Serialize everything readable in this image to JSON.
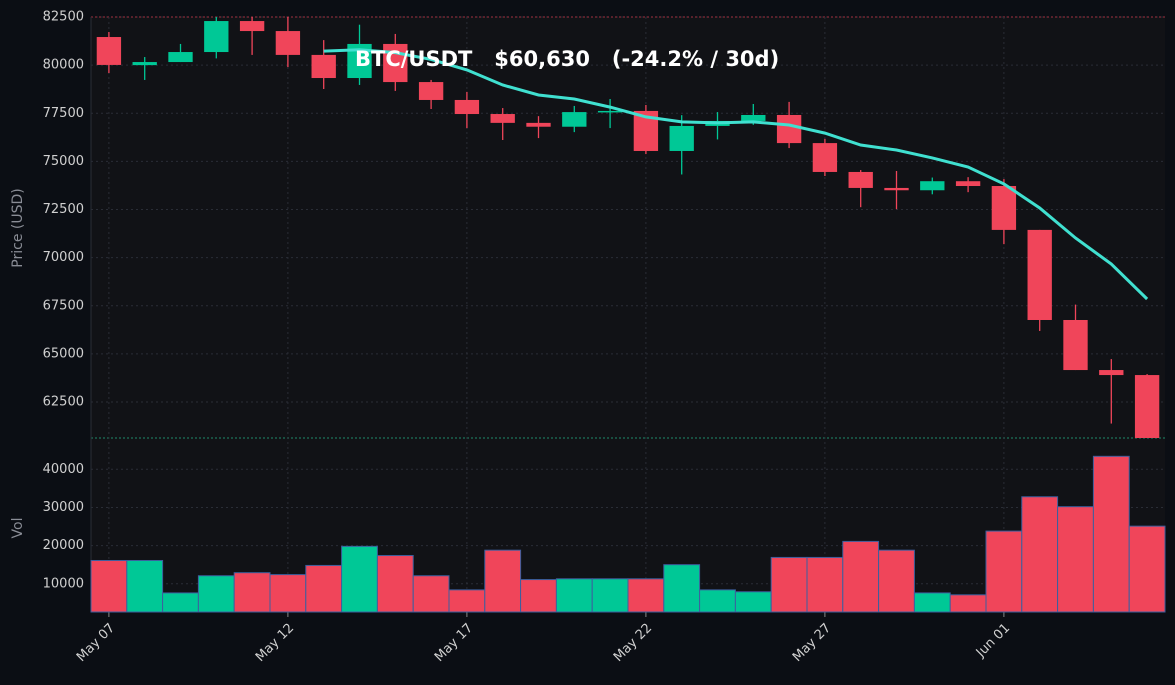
{
  "chart_data": {
    "type": "candlestick",
    "title": "BTC/USDT   $60,630   (-24.2% / 30d)",
    "ylabel": "Price (USD)",
    "categories": [
      "May 07",
      null,
      null,
      null,
      null,
      "May 12",
      null,
      null,
      null,
      null,
      "May 17",
      null,
      null,
      null,
      null,
      "May 22",
      null,
      null,
      null,
      null,
      "May 27",
      null,
      null,
      null,
      null,
      "Jun 01",
      null,
      null,
      null,
      null
    ],
    "open": [
      81460,
      80000,
      80160,
      80680,
      82290,
      81770,
      80530,
      79330,
      81100,
      79120,
      78190,
      77460,
      77000,
      76800,
      77560,
      77620,
      75540,
      76840,
      77100,
      77410,
      75950,
      74450,
      73620,
      73500,
      73970,
      73720,
      71440,
      66760,
      64160,
      63900
    ],
    "high": [
      81720,
      80420,
      81100,
      82500,
      82500,
      82500,
      81300,
      82100,
      81620,
      79230,
      78610,
      77770,
      77350,
      77880,
      78240,
      77930,
      77400,
      77560,
      77980,
      78090,
      76170,
      74550,
      74500,
      74160,
      74180,
      74080,
      71440,
      67560,
      64730,
      63950
    ],
    "low": [
      79590,
      79230,
      80160,
      80350,
      80530,
      79900,
      78760,
      78970,
      78660,
      77720,
      76730,
      76110,
      76210,
      76520,
      76730,
      75380,
      74320,
      76140,
      76900,
      75690,
      74240,
      72620,
      72520,
      73290,
      73400,
      70700,
      66190,
      64160,
      61380,
      60630
    ],
    "close": [
      80010,
      80160,
      80680,
      82290,
      81770,
      80530,
      79330,
      81100,
      79120,
      78190,
      77460,
      77000,
      76800,
      77560,
      77620,
      75540,
      76840,
      77100,
      77410,
      75950,
      74450,
      73620,
      73500,
      73970,
      73720,
      71440,
      66760,
      64160,
      63900,
      60630
    ],
    "up_color": "#00c896",
    "down_color": "#f0455a",
    "ylim": [
      60630,
      82500
    ],
    "yticks": [
      62500,
      65000,
      67500,
      70000,
      72500,
      75000,
      77500,
      80000,
      82500
    ],
    "grid": true,
    "overlay": {
      "type": "line",
      "color": "#40e0d0",
      "values": [
        null,
        null,
        null,
        null,
        null,
        null,
        80730,
        80800,
        80650,
        80300,
        79750,
        78970,
        78450,
        78240,
        77820,
        77310,
        77050,
        77000,
        77050,
        76890,
        76470,
        75850,
        75590,
        75180,
        74710,
        73830,
        72580,
        71020,
        69670,
        67850
      ]
    },
    "volume": {
      "type": "bar",
      "ylabel": "Vol",
      "values": [
        16100,
        16100,
        7600,
        12100,
        12900,
        12400,
        14800,
        19800,
        17400,
        12100,
        8400,
        18800,
        11100,
        11300,
        11300,
        11300,
        15000,
        8400,
        7900,
        16900,
        16900,
        21100,
        18800,
        7600,
        7100,
        23800,
        32800,
        30200,
        43400,
        25100
      ],
      "ylim": [
        2600,
        48200
      ],
      "yticks": [
        10000,
        20000,
        30000,
        40000
      ]
    }
  }
}
